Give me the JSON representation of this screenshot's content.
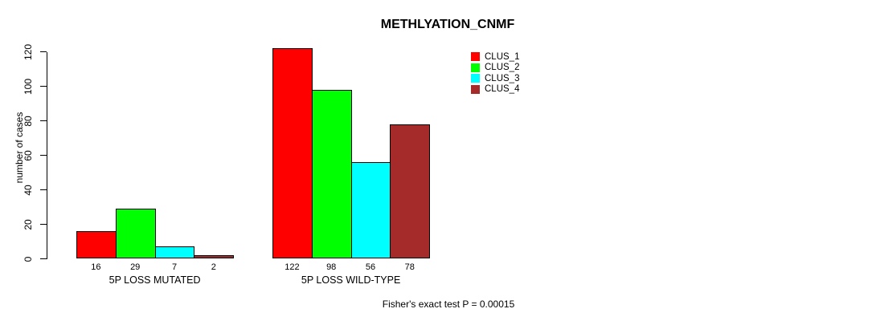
{
  "page": {
    "title": "METHLYATION_CNMF",
    "y_axis_label": "number of cases",
    "footer_annotation": "Fisher's exact test P = 0.00015"
  },
  "chart_data": {
    "type": "bar",
    "title": "METHLYATION_CNMF",
    "xlabel": "",
    "ylabel": "number of cases",
    "categories": [
      "5P LOSS MUTATED",
      "5P LOSS WILD-TYPE"
    ],
    "series": [
      {
        "name": "CLUS_1",
        "color": "#ff0000",
        "values": [
          16,
          122
        ]
      },
      {
        "name": "CLUS_2",
        "color": "#00ff00",
        "values": [
          29,
          98
        ]
      },
      {
        "name": "CLUS_3",
        "color": "#00ffff",
        "values": [
          7,
          56
        ]
      },
      {
        "name": "CLUS_4",
        "color": "#a52a2a",
        "values": [
          2,
          78
        ]
      }
    ],
    "bar_value_labels": true,
    "bar_border_color": "#000000",
    "ylim": [
      0,
      120
    ],
    "yticks": [
      0,
      20,
      40,
      60,
      80,
      100,
      120
    ],
    "grid": false,
    "legend": {
      "position": "top-right",
      "entries": [
        "CLUS_1",
        "CLUS_2",
        "CLUS_3",
        "CLUS_4"
      ]
    },
    "annotation": "Fisher's exact test P = 0.00015"
  }
}
